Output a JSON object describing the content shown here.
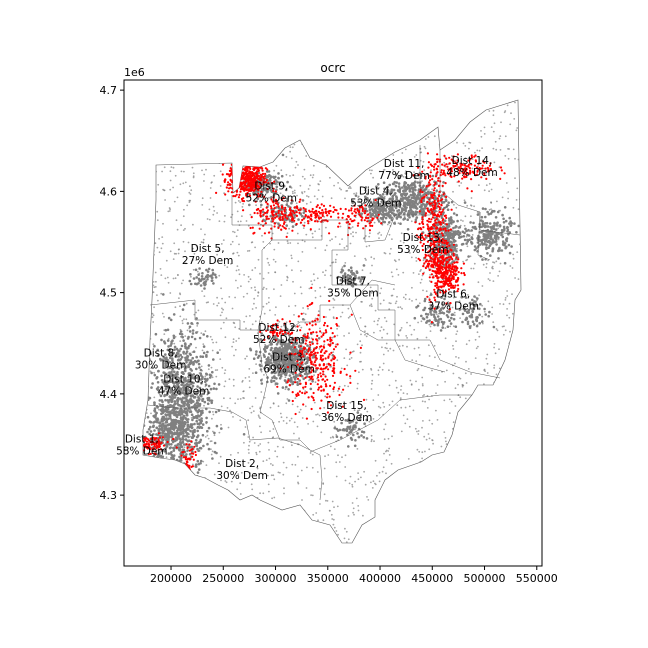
{
  "chart_data": {
    "type": "scatter",
    "title": "ocrc",
    "xlabel": "",
    "ylabel": "",
    "y_offset_label": "1e6",
    "xlim": [
      155000,
      555000
    ],
    "ylim": [
      4230000,
      4710000
    ],
    "x_ticks": [
      200000,
      250000,
      300000,
      350000,
      400000,
      450000,
      500000,
      550000
    ],
    "x_tick_labels": [
      "200000",
      "250000",
      "300000",
      "350000",
      "400000",
      "450000",
      "500000",
      "550000"
    ],
    "y_ticks": [
      4300000,
      4400000,
      4500000,
      4600000,
      4700000
    ],
    "y_tick_labels": [
      "4.3",
      "4.4",
      "4.5",
      "4.6",
      "4.7"
    ],
    "grid": false,
    "colors": {
      "gray_points": "#808080",
      "red_points": "#ff0000",
      "boundary": "#555555"
    },
    "districts": [
      {
        "line1": "Dist 1,",
        "line2": "58% Dem",
        "x": 172000,
        "y": 4352000
      },
      {
        "line1": "Dist 2,",
        "line2": "30% Dem",
        "x": 268000,
        "y": 4328000
      },
      {
        "line1": "Dist 3,",
        "line2": "69% Dem",
        "x": 313000,
        "y": 4433000
      },
      {
        "line1": "Dist 4,",
        "line2": "53% Dem",
        "x": 396000,
        "y": 4597000
      },
      {
        "line1": "Dist 5,",
        "line2": "27% Dem",
        "x": 235000,
        "y": 4540000
      },
      {
        "line1": "Dist 6,",
        "line2": "37% Dem",
        "x": 470000,
        "y": 4495000
      },
      {
        "line1": "Dist 7,",
        "line2": "35% Dem",
        "x": 374000,
        "y": 4508000
      },
      {
        "line1": "Dist 8,",
        "line2": "30% Dem",
        "x": 190000,
        "y": 4437000
      },
      {
        "line1": "Dist 9,",
        "line2": "52% Dem",
        "x": 296000,
        "y": 4602000
      },
      {
        "line1": "Dist 10,",
        "line2": "47% Dem",
        "x": 212000,
        "y": 4411000
      },
      {
        "line1": "Dist 11,",
        "line2": "77% Dem",
        "x": 423000,
        "y": 4624000
      },
      {
        "line1": "Dist 12,",
        "line2": "52% Dem",
        "x": 303000,
        "y": 4462000
      },
      {
        "line1": "Dist 13,",
        "line2": "53% Dem",
        "x": 441000,
        "y": 4551000
      },
      {
        "line1": "Dist 14,",
        "line2": "48% Dem",
        "x": 488000,
        "y": 4627000
      },
      {
        "line1": "Dist 15,",
        "line2": "36% Dem",
        "x": 368000,
        "y": 4385000
      }
    ],
    "red_clusters": [
      {
        "x": 273000,
        "y": 4612000,
        "sx": 9000,
        "sy": 9000,
        "n": 420
      },
      {
        "x": 306000,
        "y": 4578000,
        "sx": 16000,
        "sy": 9000,
        "n": 160
      },
      {
        "x": 341000,
        "y": 4578000,
        "sx": 9000,
        "sy": 5000,
        "n": 60
      },
      {
        "x": 380000,
        "y": 4575000,
        "sx": 10000,
        "sy": 6000,
        "n": 70
      },
      {
        "x": 451000,
        "y": 4560000,
        "sx": 7000,
        "sy": 30000,
        "n": 340
      },
      {
        "x": 463000,
        "y": 4520000,
        "sx": 7000,
        "sy": 10000,
        "n": 250
      },
      {
        "x": 478000,
        "y": 4622000,
        "sx": 16000,
        "sy": 7000,
        "n": 150
      },
      {
        "x": 340000,
        "y": 4432000,
        "sx": 14000,
        "sy": 22000,
        "n": 280
      },
      {
        "x": 302000,
        "y": 4462000,
        "sx": 6000,
        "sy": 5000,
        "n": 40
      },
      {
        "x": 181000,
        "y": 4350000,
        "sx": 9000,
        "sy": 4000,
        "n": 90
      },
      {
        "x": 217000,
        "y": 4335000,
        "sx": 3000,
        "sy": 9000,
        "n": 40
      }
    ],
    "gray_clusters": [
      {
        "x": 210000,
        "y": 4392000,
        "sx": 14000,
        "sy": 35000,
        "n": 900
      },
      {
        "x": 196000,
        "y": 4360000,
        "sx": 12000,
        "sy": 12000,
        "n": 260
      },
      {
        "x": 312000,
        "y": 4434000,
        "sx": 12000,
        "sy": 12000,
        "n": 600
      },
      {
        "x": 432000,
        "y": 4592000,
        "sx": 15000,
        "sy": 10000,
        "n": 420
      },
      {
        "x": 463000,
        "y": 4552000,
        "sx": 8000,
        "sy": 14000,
        "n": 300
      },
      {
        "x": 505000,
        "y": 4557000,
        "sx": 10000,
        "sy": 10000,
        "n": 230
      },
      {
        "x": 288000,
        "y": 4606000,
        "sx": 10000,
        "sy": 7000,
        "n": 150
      },
      {
        "x": 398000,
        "y": 4582000,
        "sx": 10000,
        "sy": 6000,
        "n": 150
      },
      {
        "x": 308000,
        "y": 4578000,
        "sx": 9000,
        "sy": 6000,
        "n": 90
      },
      {
        "x": 373000,
        "y": 4515000,
        "sx": 6000,
        "sy": 5000,
        "n": 60
      },
      {
        "x": 232000,
        "y": 4515000,
        "sx": 6000,
        "sy": 5000,
        "n": 50
      },
      {
        "x": 455000,
        "y": 4480000,
        "sx": 8000,
        "sy": 8000,
        "n": 80
      },
      {
        "x": 490000,
        "y": 4480000,
        "sx": 8000,
        "sy": 8000,
        "n": 60
      },
      {
        "x": 372000,
        "y": 4365000,
        "sx": 8000,
        "sy": 7000,
        "n": 60
      }
    ]
  }
}
